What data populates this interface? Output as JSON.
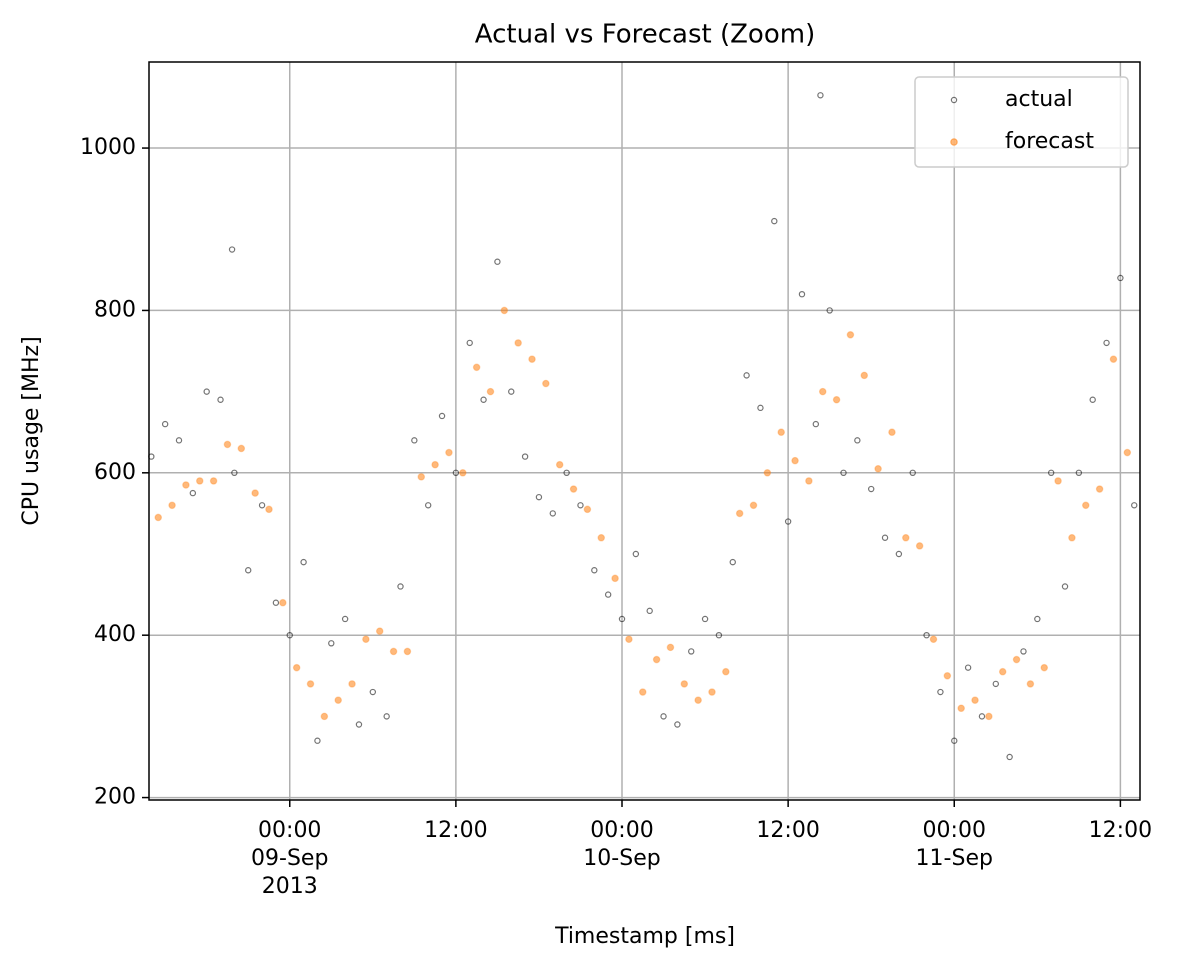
{
  "chart_data": {
    "type": "scatter",
    "title": "Actual vs Forecast (Zoom)",
    "x_label": "Timestamp [ms]",
    "y_label": "CPU usage [MHz]",
    "xlim": [
      "2013-09-08 13:50",
      "2013-09-11 13:25"
    ],
    "ylim": [
      197,
      1106
    ],
    "xticks": [
      {
        "value": "2013-09-09 00:00",
        "label": "00:00\n09-Sep\n2013"
      },
      {
        "value": "2013-09-09 12:00",
        "label": "12:00"
      },
      {
        "value": "2013-09-10 00:00",
        "label": "00:00\n10-Sep"
      },
      {
        "value": "2013-09-10 12:00",
        "label": "12:00"
      },
      {
        "value": "2013-09-11 00:00",
        "label": "00:00\n11-Sep"
      },
      {
        "value": "2013-09-11 12:00",
        "label": "12:00"
      }
    ],
    "yticks": [
      200,
      400,
      600,
      800,
      1000
    ],
    "grid": true,
    "legend": "upper right",
    "series": [
      {
        "name": "actual",
        "color": "#000000",
        "x": [
          "2013-09-08 14:00",
          "2013-09-08 15:00",
          "2013-09-08 16:00",
          "2013-09-08 17:00",
          "2013-09-08 18:00",
          "2013-09-08 19:00",
          "2013-09-08 19:50",
          "2013-09-08 20:00",
          "2013-09-08 21:00",
          "2013-09-08 22:00",
          "2013-09-08 23:00",
          "2013-09-09 00:00",
          "2013-09-09 01:00",
          "2013-09-09 02:00",
          "2013-09-09 03:00",
          "2013-09-09 04:00",
          "2013-09-09 05:00",
          "2013-09-09 06:00",
          "2013-09-09 07:00",
          "2013-09-09 08:00",
          "2013-09-09 09:00",
          "2013-09-09 10:00",
          "2013-09-09 11:00",
          "2013-09-09 12:00",
          "2013-09-09 13:00",
          "2013-09-09 14:00",
          "2013-09-09 15:00",
          "2013-09-09 16:00",
          "2013-09-09 17:00",
          "2013-09-09 18:00",
          "2013-09-09 19:00",
          "2013-09-09 20:00",
          "2013-09-09 21:00",
          "2013-09-09 22:00",
          "2013-09-09 23:00",
          "2013-09-10 00:00",
          "2013-09-10 01:00",
          "2013-09-10 02:00",
          "2013-09-10 03:00",
          "2013-09-10 04:00",
          "2013-09-10 05:00",
          "2013-09-10 06:00",
          "2013-09-10 07:00",
          "2013-09-10 08:00",
          "2013-09-10 09:00",
          "2013-09-10 10:00",
          "2013-09-10 11:00",
          "2013-09-10 12:00",
          "2013-09-10 13:00",
          "2013-09-10 14:00",
          "2013-09-10 14:20",
          "2013-09-10 15:00",
          "2013-09-10 16:00",
          "2013-09-10 17:00",
          "2013-09-10 18:00",
          "2013-09-10 19:00",
          "2013-09-10 20:00",
          "2013-09-10 21:00",
          "2013-09-10 22:00",
          "2013-09-10 23:00",
          "2013-09-11 00:00",
          "2013-09-11 01:00",
          "2013-09-11 02:00",
          "2013-09-11 03:00",
          "2013-09-11 04:00",
          "2013-09-11 05:00",
          "2013-09-11 06:00",
          "2013-09-11 07:00",
          "2013-09-11 08:00",
          "2013-09-11 09:00",
          "2013-09-11 10:00",
          "2013-09-11 11:00",
          "2013-09-11 12:00",
          "2013-09-11 13:00"
        ],
        "values": [
          620,
          660,
          640,
          575,
          700,
          690,
          875,
          600,
          480,
          560,
          440,
          400,
          490,
          270,
          390,
          420,
          290,
          330,
          300,
          460,
          640,
          560,
          670,
          600,
          760,
          690,
          860,
          700,
          620,
          570,
          550,
          600,
          560,
          480,
          450,
          420,
          500,
          430,
          300,
          290,
          380,
          420,
          400,
          490,
          720,
          680,
          910,
          540,
          820,
          660,
          1065,
          800,
          600,
          640,
          580,
          520,
          500,
          600,
          400,
          330,
          270,
          360,
          300,
          340,
          250,
          380,
          420,
          600,
          460,
          600,
          690,
          760,
          840,
          560
        ]
      },
      {
        "name": "forecast",
        "color": "#ff7f0e",
        "x": [
          "2013-09-08 14:30",
          "2013-09-08 15:30",
          "2013-09-08 16:30",
          "2013-09-08 17:30",
          "2013-09-08 18:30",
          "2013-09-08 19:30",
          "2013-09-08 20:30",
          "2013-09-08 21:30",
          "2013-09-08 22:30",
          "2013-09-08 23:30",
          "2013-09-09 00:30",
          "2013-09-09 01:30",
          "2013-09-09 02:30",
          "2013-09-09 03:30",
          "2013-09-09 04:30",
          "2013-09-09 05:30",
          "2013-09-09 06:30",
          "2013-09-09 07:30",
          "2013-09-09 08:30",
          "2013-09-09 09:30",
          "2013-09-09 10:30",
          "2013-09-09 11:30",
          "2013-09-09 12:30",
          "2013-09-09 13:30",
          "2013-09-09 14:30",
          "2013-09-09 15:30",
          "2013-09-09 16:30",
          "2013-09-09 17:30",
          "2013-09-09 18:30",
          "2013-09-09 19:30",
          "2013-09-09 20:30",
          "2013-09-09 21:30",
          "2013-09-09 22:30",
          "2013-09-09 23:30",
          "2013-09-10 00:30",
          "2013-09-10 01:30",
          "2013-09-10 02:30",
          "2013-09-10 03:30",
          "2013-09-10 04:30",
          "2013-09-10 05:30",
          "2013-09-10 06:30",
          "2013-09-10 07:30",
          "2013-09-10 08:30",
          "2013-09-10 09:30",
          "2013-09-10 10:30",
          "2013-09-10 11:30",
          "2013-09-10 12:30",
          "2013-09-10 13:30",
          "2013-09-10 14:30",
          "2013-09-10 15:30",
          "2013-09-10 16:30",
          "2013-09-10 17:30",
          "2013-09-10 18:30",
          "2013-09-10 19:30",
          "2013-09-10 20:30",
          "2013-09-10 21:30",
          "2013-09-10 22:30",
          "2013-09-10 23:30",
          "2013-09-11 00:30",
          "2013-09-11 01:30",
          "2013-09-11 02:30",
          "2013-09-11 03:30",
          "2013-09-11 04:30",
          "2013-09-11 05:30",
          "2013-09-11 06:30",
          "2013-09-11 07:30",
          "2013-09-11 08:30",
          "2013-09-11 09:30",
          "2013-09-11 10:30",
          "2013-09-11 11:30",
          "2013-09-11 12:30"
        ],
        "values": [
          545,
          560,
          585,
          590,
          590,
          635,
          630,
          575,
          555,
          440,
          360,
          340,
          300,
          320,
          340,
          395,
          405,
          380,
          380,
          595,
          610,
          625,
          600,
          730,
          700,
          800,
          760,
          740,
          710,
          610,
          580,
          555,
          520,
          470,
          395,
          330,
          370,
          385,
          340,
          320,
          330,
          355,
          550,
          560,
          600,
          650,
          615,
          590,
          700,
          690,
          770,
          720,
          605,
          650,
          520,
          510,
          395,
          350,
          310,
          320,
          300,
          355,
          370,
          340,
          360,
          590,
          520,
          560,
          580,
          740,
          625
        ]
      }
    ]
  }
}
